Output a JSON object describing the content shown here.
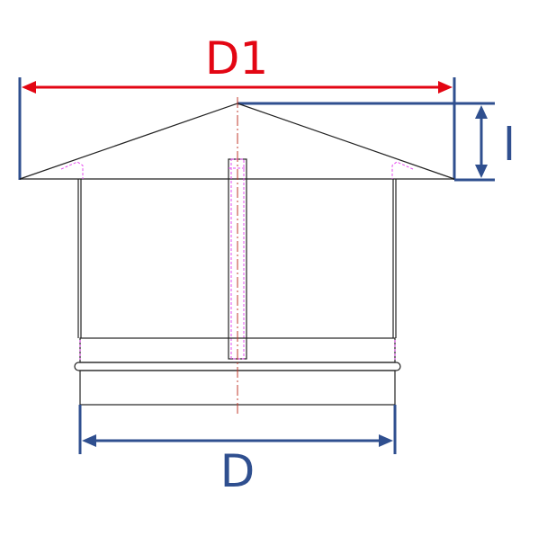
{
  "labels": {
    "top_diameter": "D1",
    "height": "l",
    "base_diameter": "D"
  },
  "colors": {
    "top_diameter": "#e30613",
    "height": "#2f4f8f",
    "base_diameter": "#2f4f8f",
    "outline": "#222222",
    "hidden_detail": "#e64ef0",
    "centerline": "#c0392b"
  }
}
